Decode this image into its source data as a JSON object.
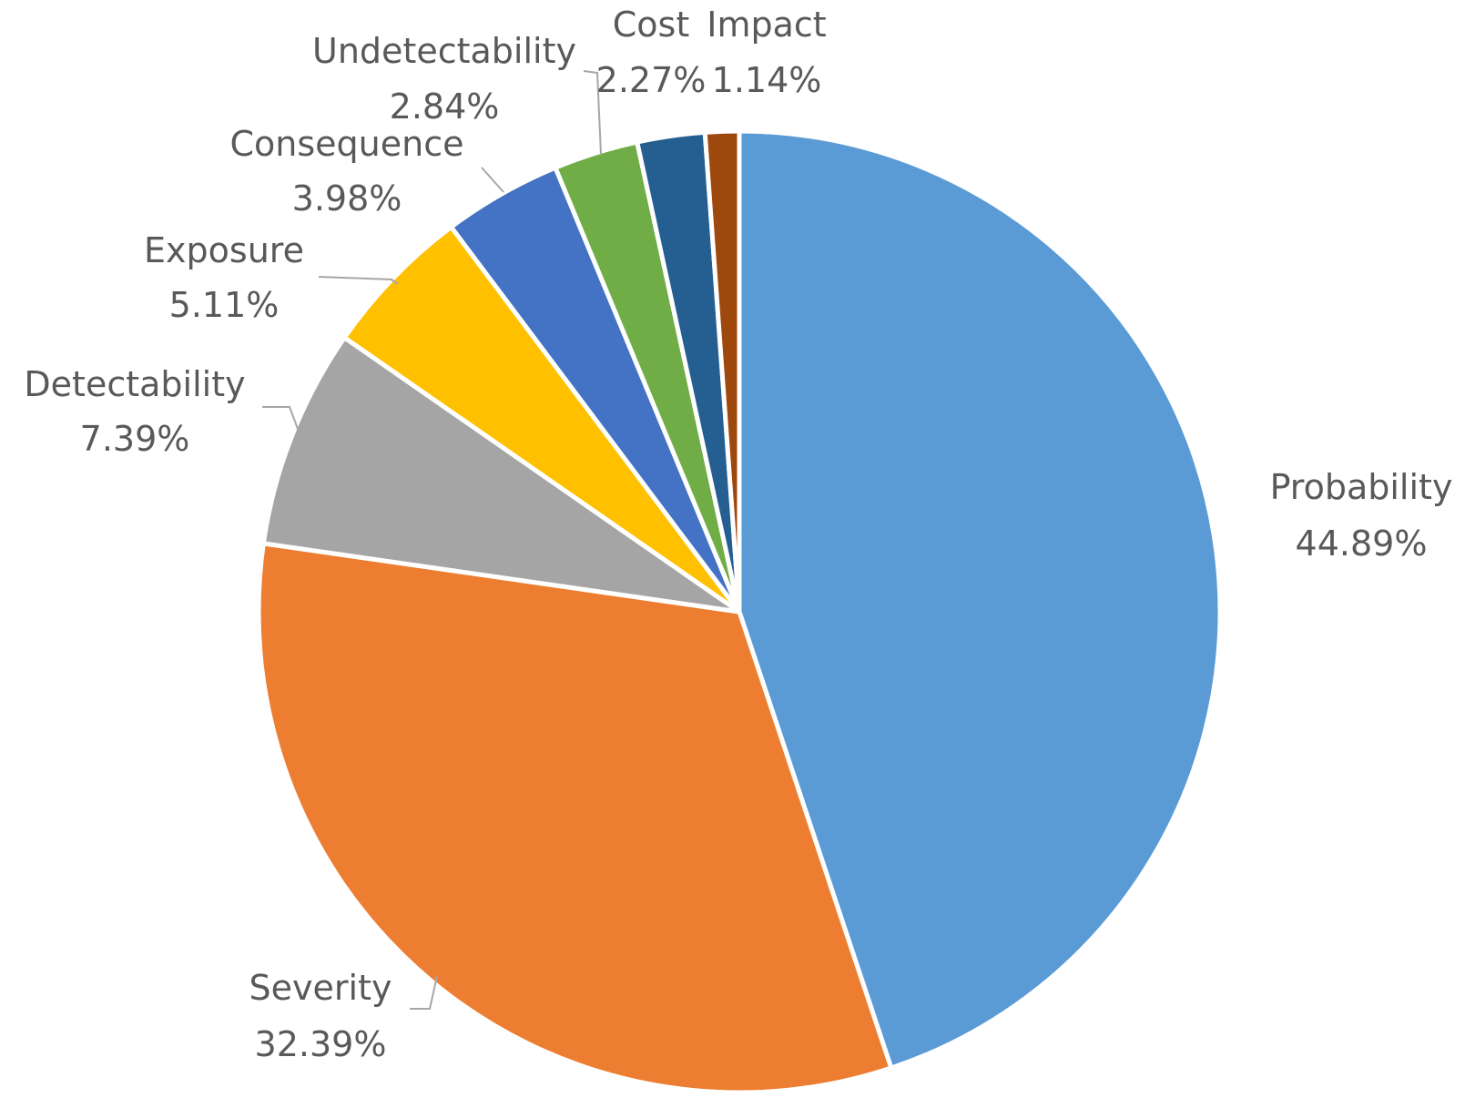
{
  "chart_data": {
    "type": "pie",
    "title": "",
    "slices": [
      {
        "label": "Probability",
        "value": 44.89,
        "display": "44.89%",
        "color": "#5b9bd5"
      },
      {
        "label": "Severity",
        "value": 32.39,
        "display": "32.39%",
        "color": "#ed7d31"
      },
      {
        "label": "Detectability",
        "value": 7.39,
        "display": "7.39%",
        "color": "#a5a5a5"
      },
      {
        "label": "Exposure",
        "value": 5.11,
        "display": "5.11%",
        "color": "#ffc000"
      },
      {
        "label": "Consequence",
        "value": 3.98,
        "display": "3.98%",
        "color": "#4472c4"
      },
      {
        "label": "Undetectability",
        "value": 2.84,
        "display": "2.84%",
        "color": "#70ad47"
      },
      {
        "label": "Cost",
        "value": 2.27,
        "display": "2.27%",
        "color": "#255e91"
      },
      {
        "label": "Impact",
        "value": 1.14,
        "display": "1.14%",
        "color": "#9e480e"
      }
    ],
    "start_angle_deg": 0,
    "direction": "clockwise",
    "legend": "none",
    "data_labels": "outside-with-leader-lines"
  }
}
